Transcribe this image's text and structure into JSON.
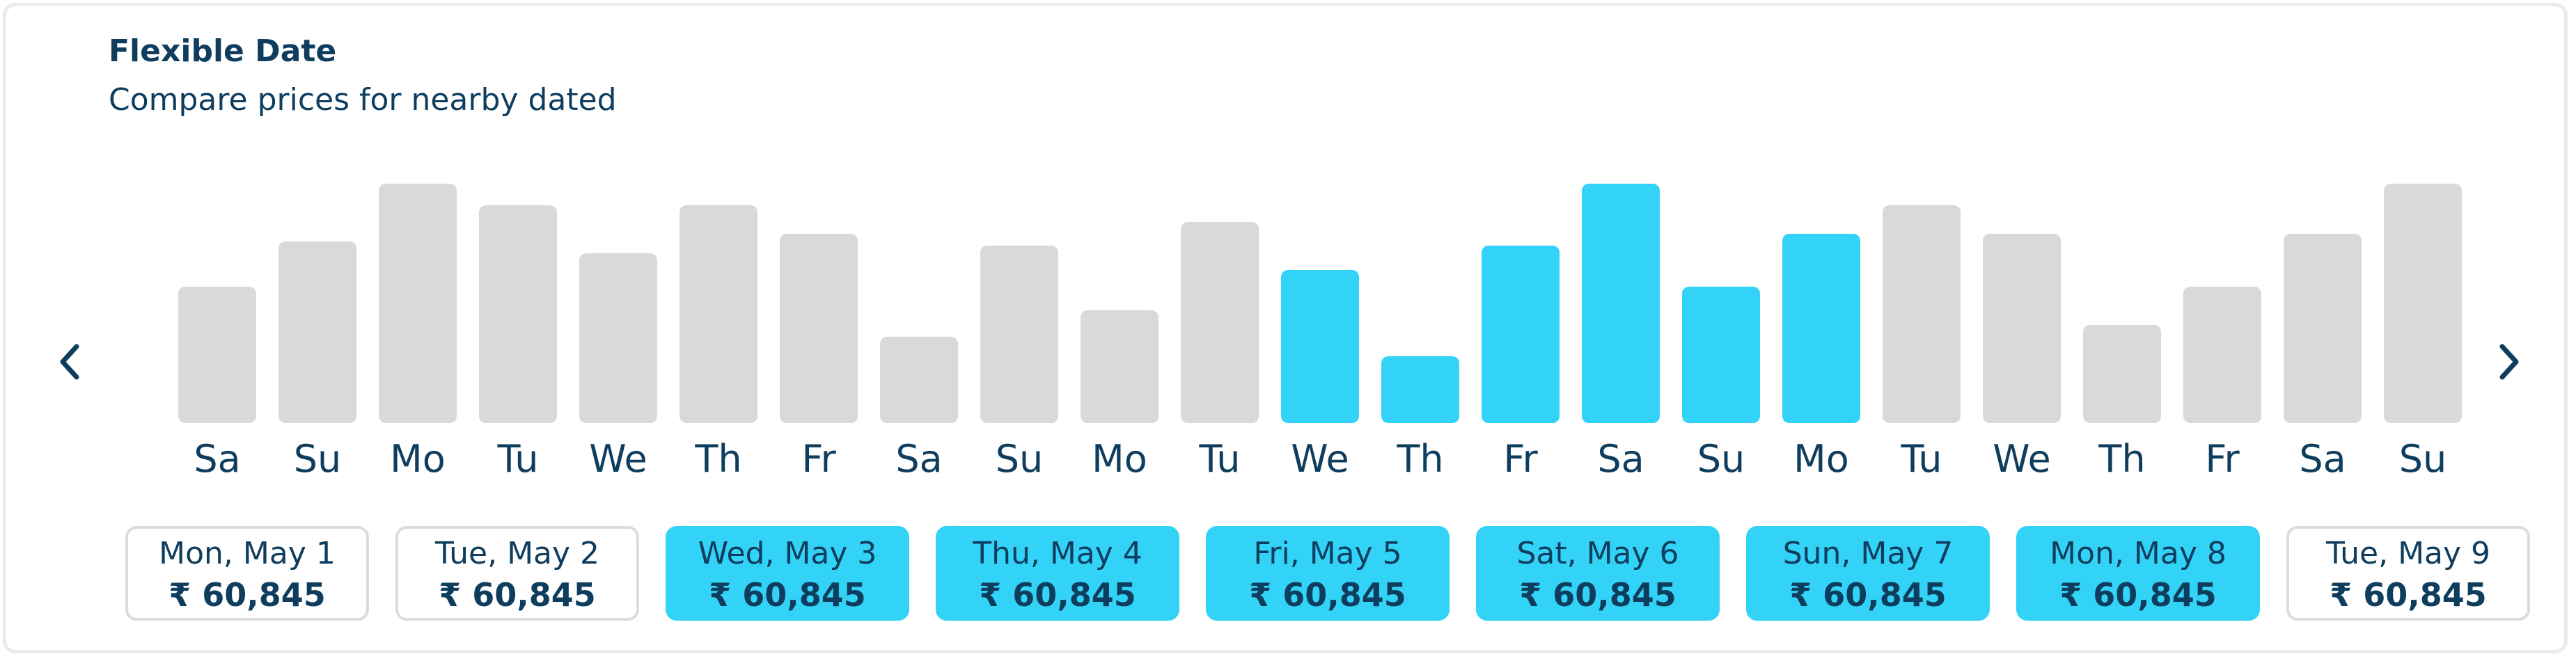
{
  "header": {
    "title": "Flexible Date",
    "subtitle": "Compare prices for nearby dated"
  },
  "colors": {
    "selected": "#33d2f7",
    "unselected": "#d9d9d9",
    "text": "#0e3d5e",
    "card_border": "#dcdcdc"
  },
  "icons": {
    "prev": "chevron-left-icon",
    "next": "chevron-right-icon"
  },
  "chart_data": {
    "type": "bar",
    "categories": [
      "Sa",
      "Su",
      "Mo",
      "Tu",
      "We",
      "Th",
      "Fr",
      "Sa",
      "Su",
      "Mo",
      "Tu",
      "We",
      "Th",
      "Fr",
      "Sa",
      "Su",
      "Mo",
      "Tu",
      "We",
      "Th",
      "Fr",
      "Sa",
      "Su"
    ],
    "values": [
      57,
      76,
      100,
      91,
      71,
      91,
      79,
      36,
      74,
      47,
      84,
      64,
      28,
      74,
      100,
      57,
      79,
      91,
      79,
      41,
      57,
      79,
      100
    ],
    "selected": [
      false,
      false,
      false,
      false,
      false,
      false,
      false,
      false,
      false,
      false,
      false,
      true,
      true,
      true,
      true,
      true,
      true,
      false,
      false,
      false,
      false,
      false,
      false
    ],
    "ylim": [
      0,
      100
    ]
  },
  "dates": [
    {
      "date": "Mon, May 1",
      "price": "₹ 60,845",
      "selected": false
    },
    {
      "date": "Tue, May 2",
      "price": "₹ 60,845",
      "selected": false
    },
    {
      "date": "Wed, May 3",
      "price": "₹ 60,845",
      "selected": true
    },
    {
      "date": "Thu, May 4",
      "price": "₹ 60,845",
      "selected": true
    },
    {
      "date": "Fri, May 5",
      "price": "₹ 60,845",
      "selected": true
    },
    {
      "date": "Sat, May 6",
      "price": "₹ 60,845",
      "selected": true
    },
    {
      "date": "Sun, May 7",
      "price": "₹ 60,845",
      "selected": true
    },
    {
      "date": "Mon, May 8",
      "price": "₹ 60,845",
      "selected": true
    },
    {
      "date": "Tue, May 9",
      "price": "₹ 60,845",
      "selected": false
    }
  ]
}
